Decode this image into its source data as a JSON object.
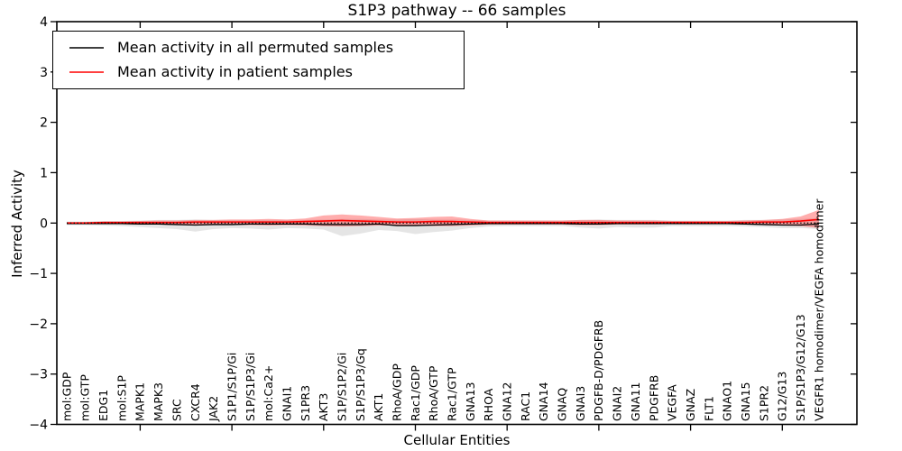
{
  "chart_data": {
    "type": "line",
    "title": "S1P3 pathway -- 66 samples",
    "xlabel": "Cellular Entities",
    "ylabel": "Inferred Activity",
    "ylim": [
      -4,
      4
    ],
    "yticks": [
      -4,
      -3,
      -2,
      -1,
      0,
      1,
      2,
      3,
      4
    ],
    "x_major_tick_every": 5,
    "grid": false,
    "legend_position": "upper left",
    "categories": [
      "mol:GDP",
      "mol:GTP",
      "EDG1",
      "mol:S1P",
      "MAPK1",
      "MAPK3",
      "SRC",
      "CXCR4",
      "JAK2",
      "S1P1/S1P/Gi",
      "S1P/S1P3/Gi",
      "mol:Ca2+",
      "GNAI1",
      "S1PR3",
      "AKT3",
      "S1P/S1P2/Gi",
      "S1P/S1P3/Gq",
      "AKT1",
      "RhoA/GDP",
      "Rac1/GDP",
      "RhoA/GTP",
      "Rac1/GTP",
      "GNA13",
      "RHOA",
      "GNA12",
      "RAC1",
      "GNA14",
      "GNAQ",
      "GNAI3",
      "PDGFB-D/PDGFRB",
      "GNAI2",
      "GNA11",
      "PDGFRB",
      "VEGFA",
      "GNAZ",
      "FLT1",
      "GNAO1",
      "GNA15",
      "S1PR2",
      "G12/G13",
      "S1P/S1P3/G12/G13",
      "VEGFR1 homodimer/VEGFA homodimer"
    ],
    "series": [
      {
        "name": "Mean activity in all permuted samples",
        "color": "#000000",
        "values": [
          -0.01,
          -0.01,
          -0.01,
          -0.01,
          -0.02,
          -0.02,
          -0.03,
          -0.04,
          -0.03,
          -0.03,
          -0.02,
          -0.02,
          -0.02,
          -0.02,
          -0.03,
          -0.03,
          -0.03,
          -0.02,
          -0.05,
          -0.05,
          -0.04,
          -0.03,
          -0.02,
          -0.01,
          -0.01,
          -0.01,
          -0.01,
          -0.01,
          -0.02,
          -0.02,
          -0.01,
          -0.01,
          -0.01,
          -0.01,
          -0.01,
          -0.01,
          -0.01,
          -0.02,
          -0.03,
          -0.04,
          -0.04,
          -0.02
        ]
      },
      {
        "name": "Mean activity in patient samples",
        "color": "#ff0000",
        "values": [
          0.0,
          0.0,
          0.01,
          0.01,
          0.01,
          0.01,
          0.01,
          0.02,
          0.02,
          0.02,
          0.02,
          0.02,
          0.02,
          0.03,
          0.04,
          0.05,
          0.04,
          0.03,
          0.02,
          0.02,
          0.03,
          0.03,
          0.02,
          0.01,
          0.01,
          0.01,
          0.01,
          0.01,
          0.01,
          0.01,
          0.01,
          0.01,
          0.01,
          0.01,
          0.01,
          0.01,
          0.01,
          0.01,
          0.02,
          0.02,
          0.04,
          0.07
        ]
      }
    ],
    "bands": [
      {
        "name": "permuted samples range",
        "color": "#aaaaaa",
        "opacity": 0.3,
        "upper": [
          0.03,
          0.03,
          0.04,
          0.04,
          0.05,
          0.06,
          0.06,
          0.07,
          0.06,
          0.06,
          0.06,
          0.06,
          0.06,
          0.06,
          0.07,
          0.08,
          0.08,
          0.07,
          0.07,
          0.08,
          0.07,
          0.07,
          0.06,
          0.05,
          0.05,
          0.05,
          0.05,
          0.05,
          0.06,
          0.07,
          0.06,
          0.06,
          0.06,
          0.05,
          0.05,
          0.05,
          0.05,
          0.06,
          0.06,
          0.07,
          0.08,
          0.1
        ],
        "lower": [
          -0.04,
          -0.04,
          -0.05,
          -0.06,
          -0.08,
          -0.1,
          -0.12,
          -0.17,
          -0.12,
          -0.1,
          -0.11,
          -0.13,
          -0.1,
          -0.11,
          -0.13,
          -0.26,
          -0.21,
          -0.14,
          -0.16,
          -0.22,
          -0.18,
          -0.15,
          -0.1,
          -0.07,
          -0.06,
          -0.06,
          -0.06,
          -0.06,
          -0.09,
          -0.11,
          -0.08,
          -0.09,
          -0.09,
          -0.06,
          -0.06,
          -0.06,
          -0.06,
          -0.07,
          -0.08,
          -0.1,
          -0.1,
          -0.12
        ]
      },
      {
        "name": "patient samples range",
        "color": "#ff3333",
        "opacity": 0.4,
        "upper": [
          0.02,
          0.02,
          0.03,
          0.03,
          0.04,
          0.05,
          0.05,
          0.06,
          0.06,
          0.07,
          0.07,
          0.08,
          0.07,
          0.09,
          0.15,
          0.17,
          0.15,
          0.12,
          0.09,
          0.1,
          0.12,
          0.13,
          0.08,
          0.05,
          0.05,
          0.05,
          0.05,
          0.05,
          0.06,
          0.06,
          0.05,
          0.05,
          0.05,
          0.04,
          0.04,
          0.04,
          0.04,
          0.05,
          0.06,
          0.08,
          0.13,
          0.26
        ],
        "lower": [
          -0.02,
          -0.02,
          -0.02,
          -0.02,
          -0.03,
          -0.03,
          -0.04,
          -0.04,
          -0.04,
          -0.04,
          -0.04,
          -0.05,
          -0.04,
          -0.05,
          -0.06,
          -0.07,
          -0.06,
          -0.05,
          -0.05,
          -0.05,
          -0.06,
          -0.06,
          -0.05,
          -0.03,
          -0.03,
          -0.03,
          -0.03,
          -0.03,
          -0.04,
          -0.04,
          -0.03,
          -0.03,
          -0.03,
          -0.02,
          -0.02,
          -0.02,
          -0.02,
          -0.03,
          -0.04,
          -0.05,
          -0.06,
          -0.1
        ]
      }
    ],
    "zero_line": {
      "y": 0,
      "style": "dotted",
      "color": "#000000"
    },
    "axis_color": "#000000"
  }
}
